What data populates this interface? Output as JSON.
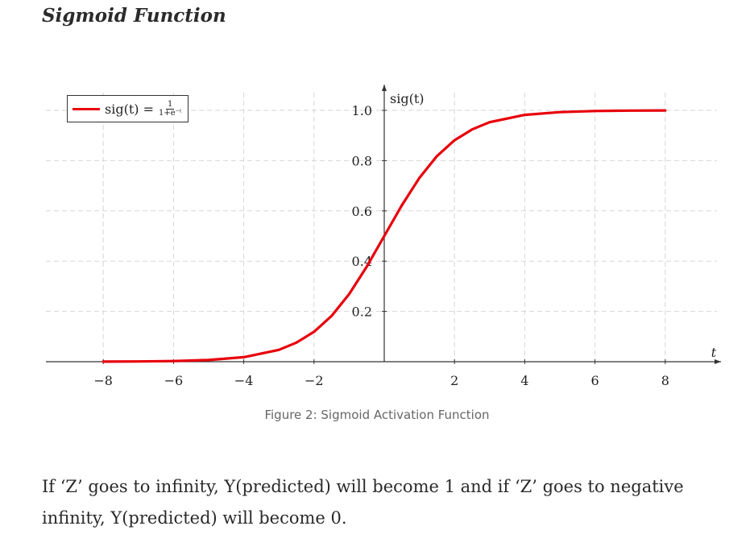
{
  "page": {
    "heading": "Sigmoid Function",
    "caption": "Figure 2: Sigmoid Activation Function",
    "body_text": "If ‘Z’ goes to infinity, Y(predicted) will become 1 and if ‘Z’ goes to negative infinity, Y(predicted) will become 0."
  },
  "legend": {
    "text": "sig(t) =",
    "frac_num": "1",
    "frac_den": "1+e⁻ᵗ"
  },
  "chart_data": {
    "type": "line",
    "xlabel": "t",
    "ylabel": "sig(t)",
    "xlim": [
      -8,
      8
    ],
    "ylim": [
      0,
      1.0
    ],
    "x_ticks": [
      -8,
      -6,
      -4,
      -2,
      2,
      4,
      6,
      8
    ],
    "x_tick_labels": [
      "−8",
      "−6",
      "−4",
      "−2",
      "2",
      "4",
      "6",
      "8"
    ],
    "y_ticks": [
      0.2,
      0.4,
      0.6,
      0.8,
      1.0
    ],
    "y_tick_labels": [
      "0.2",
      "0.4",
      "0.6",
      "0.8",
      "1.0"
    ],
    "grid": true,
    "legend_position": "top-left",
    "series": [
      {
        "name": "sig(t) = 1/(1+e^−t)",
        "color": "#e8000b",
        "x": [
          -8,
          -7,
          -6,
          -5,
          -4,
          -3,
          -2.5,
          -2,
          -1.5,
          -1,
          -0.5,
          0,
          0.5,
          1,
          1.5,
          2,
          2.5,
          3,
          4,
          5,
          6,
          7,
          8
        ],
        "y": [
          0.0003,
          0.0009,
          0.0025,
          0.0067,
          0.018,
          0.047,
          0.076,
          0.119,
          0.182,
          0.269,
          0.378,
          0.5,
          0.622,
          0.731,
          0.818,
          0.881,
          0.924,
          0.953,
          0.982,
          0.993,
          0.9975,
          0.9991,
          0.9997
        ]
      }
    ]
  }
}
